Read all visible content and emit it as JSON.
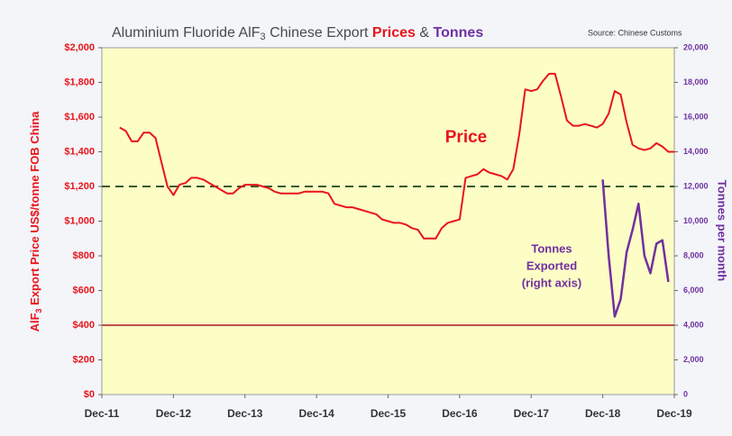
{
  "chart_data": {
    "type": "line",
    "title_parts": [
      "Aluminium Fluoride AlF",
      "3",
      " Chinese Export ",
      "Prices",
      " & ",
      "Tonnes"
    ],
    "source": "Source: Chinese Customs",
    "ylabel_parts": [
      "AlF",
      "3",
      " Export Price US$/tonne FOB China"
    ],
    "y2label": "Tonnes per month",
    "xlim": [
      "2011-12",
      "2019-12"
    ],
    "xticks": [
      {
        "value": "2011-12",
        "label": "Dec-11"
      },
      {
        "value": "2012-12",
        "label": "Dec-12"
      },
      {
        "value": "2013-12",
        "label": "Dec-13"
      },
      {
        "value": "2014-12",
        "label": "Dec-14"
      },
      {
        "value": "2015-12",
        "label": "Dec-15"
      },
      {
        "value": "2016-12",
        "label": "Dec-16"
      },
      {
        "value": "2017-12",
        "label": "Dec-17"
      },
      {
        "value": "2018-12",
        "label": "Dec-18"
      },
      {
        "value": "2019-12",
        "label": "Dec-19"
      }
    ],
    "ylim": [
      0,
      2000
    ],
    "yticks": [
      {
        "value": 0,
        "label": "$0"
      },
      {
        "value": 200,
        "label": "$200"
      },
      {
        "value": 400,
        "label": "$400"
      },
      {
        "value": 600,
        "label": "$600"
      },
      {
        "value": 800,
        "label": "$800"
      },
      {
        "value": 1000,
        "label": "$1,000"
      },
      {
        "value": 1200,
        "label": "$1,200"
      },
      {
        "value": 1400,
        "label": "$1,400"
      },
      {
        "value": 1600,
        "label": "$1,600"
      },
      {
        "value": 1800,
        "label": "$1,800"
      },
      {
        "value": 2000,
        "label": "$2,000"
      }
    ],
    "y2lim": [
      0,
      20000
    ],
    "y2ticks": [
      0,
      {
        "value": 2000,
        "label": "2,000"
      },
      {
        "value": 4000,
        "label": "4,000"
      },
      {
        "value": 6000,
        "label": "6,000"
      },
      {
        "value": 8000,
        "label": "8,000"
      },
      {
        "value": 10000,
        "label": "10,000"
      },
      {
        "value": 12000,
        "label": "12,000"
      },
      {
        "value": 14000,
        "label": "14,000"
      },
      {
        "value": 16000,
        "label": "16,000"
      },
      {
        "value": 18000,
        "label": "18,000"
      },
      {
        "value": 20000,
        "label": "20,000"
      }
    ],
    "reference_lines": [
      {
        "value": 1200,
        "color": "#3a5a2a",
        "style": "dashed"
      },
      {
        "value": 400,
        "color": "#c0504d",
        "style": "solid"
      }
    ],
    "series": [
      {
        "name": "Price",
        "color": "#e8141b",
        "x": [
          "2012-03",
          "2012-04",
          "2012-05",
          "2012-06",
          "2012-07",
          "2012-08",
          "2012-09",
          "2012-10",
          "2012-11",
          "2012-12",
          "2013-01",
          "2013-02",
          "2013-03",
          "2013-04",
          "2013-05",
          "2013-06",
          "2013-07",
          "2013-08",
          "2013-09",
          "2013-10",
          "2013-11",
          "2013-12",
          "2014-01",
          "2014-02",
          "2014-03",
          "2014-04",
          "2014-05",
          "2014-06",
          "2014-07",
          "2014-08",
          "2014-09",
          "2014-10",
          "2014-11",
          "2014-12",
          "2015-01",
          "2015-02",
          "2015-03",
          "2015-04",
          "2015-05",
          "2015-06",
          "2015-07",
          "2015-08",
          "2015-09",
          "2015-10",
          "2015-11",
          "2015-12",
          "2016-01",
          "2016-02",
          "2016-03",
          "2016-04",
          "2016-05",
          "2016-06",
          "2016-07",
          "2016-08",
          "2016-09",
          "2016-10",
          "2016-11",
          "2016-12",
          "2017-01",
          "2017-02",
          "2017-03",
          "2017-04",
          "2017-05",
          "2017-06",
          "2017-07",
          "2017-08",
          "2017-09",
          "2017-10",
          "2017-11",
          "2017-12",
          "2018-01",
          "2018-02",
          "2018-03",
          "2018-04",
          "2018-05",
          "2018-06",
          "2018-07",
          "2018-08",
          "2018-09",
          "2018-10",
          "2018-11",
          "2018-12",
          "2019-01",
          "2019-02",
          "2019-03",
          "2019-04",
          "2019-05",
          "2019-06",
          "2019-07",
          "2019-08",
          "2019-09",
          "2019-10",
          "2019-11",
          "2019-12"
        ],
        "values": [
          1540,
          1520,
          1460,
          1460,
          1510,
          1510,
          1480,
          1340,
          1200,
          1150,
          1210,
          1220,
          1250,
          1250,
          1240,
          1220,
          1200,
          1180,
          1160,
          1160,
          1190,
          1210,
          1210,
          1210,
          1200,
          1190,
          1170,
          1160,
          1160,
          1160,
          1160,
          1170,
          1170,
          1170,
          1170,
          1160,
          1100,
          1090,
          1080,
          1080,
          1070,
          1060,
          1050,
          1040,
          1010,
          1000,
          990,
          990,
          980,
          960,
          950,
          900,
          900,
          900,
          960,
          990,
          1000,
          1010,
          1250,
          1260,
          1270,
          1300,
          1280,
          1270,
          1260,
          1240,
          1300,
          1500,
          1760,
          1750,
          1760,
          1810,
          1850,
          1850,
          1720,
          1580,
          1550,
          1550,
          1560,
          1550,
          1540,
          1560,
          1620,
          1750,
          1730,
          1570,
          1440,
          1420,
          1410,
          1420,
          1450,
          1430,
          1400,
          1400
        ]
      },
      {
        "label_lines": [
          "Tonnes",
          "Exported",
          "(right axis)"
        ],
        "color": "#7030a0",
        "axis": "y2",
        "x": [
          "2018-12",
          "2019-01",
          "2019-02",
          "2019-03",
          "2019-04",
          "2019-05",
          "2019-06",
          "2019-07",
          "2019-08",
          "2019-09",
          "2019-10",
          "2019-11"
        ],
        "values": [
          12400,
          8000,
          4500,
          5500,
          8200,
          9500,
          11000,
          8000,
          7000,
          8700,
          8900,
          6500
        ]
      }
    ]
  }
}
